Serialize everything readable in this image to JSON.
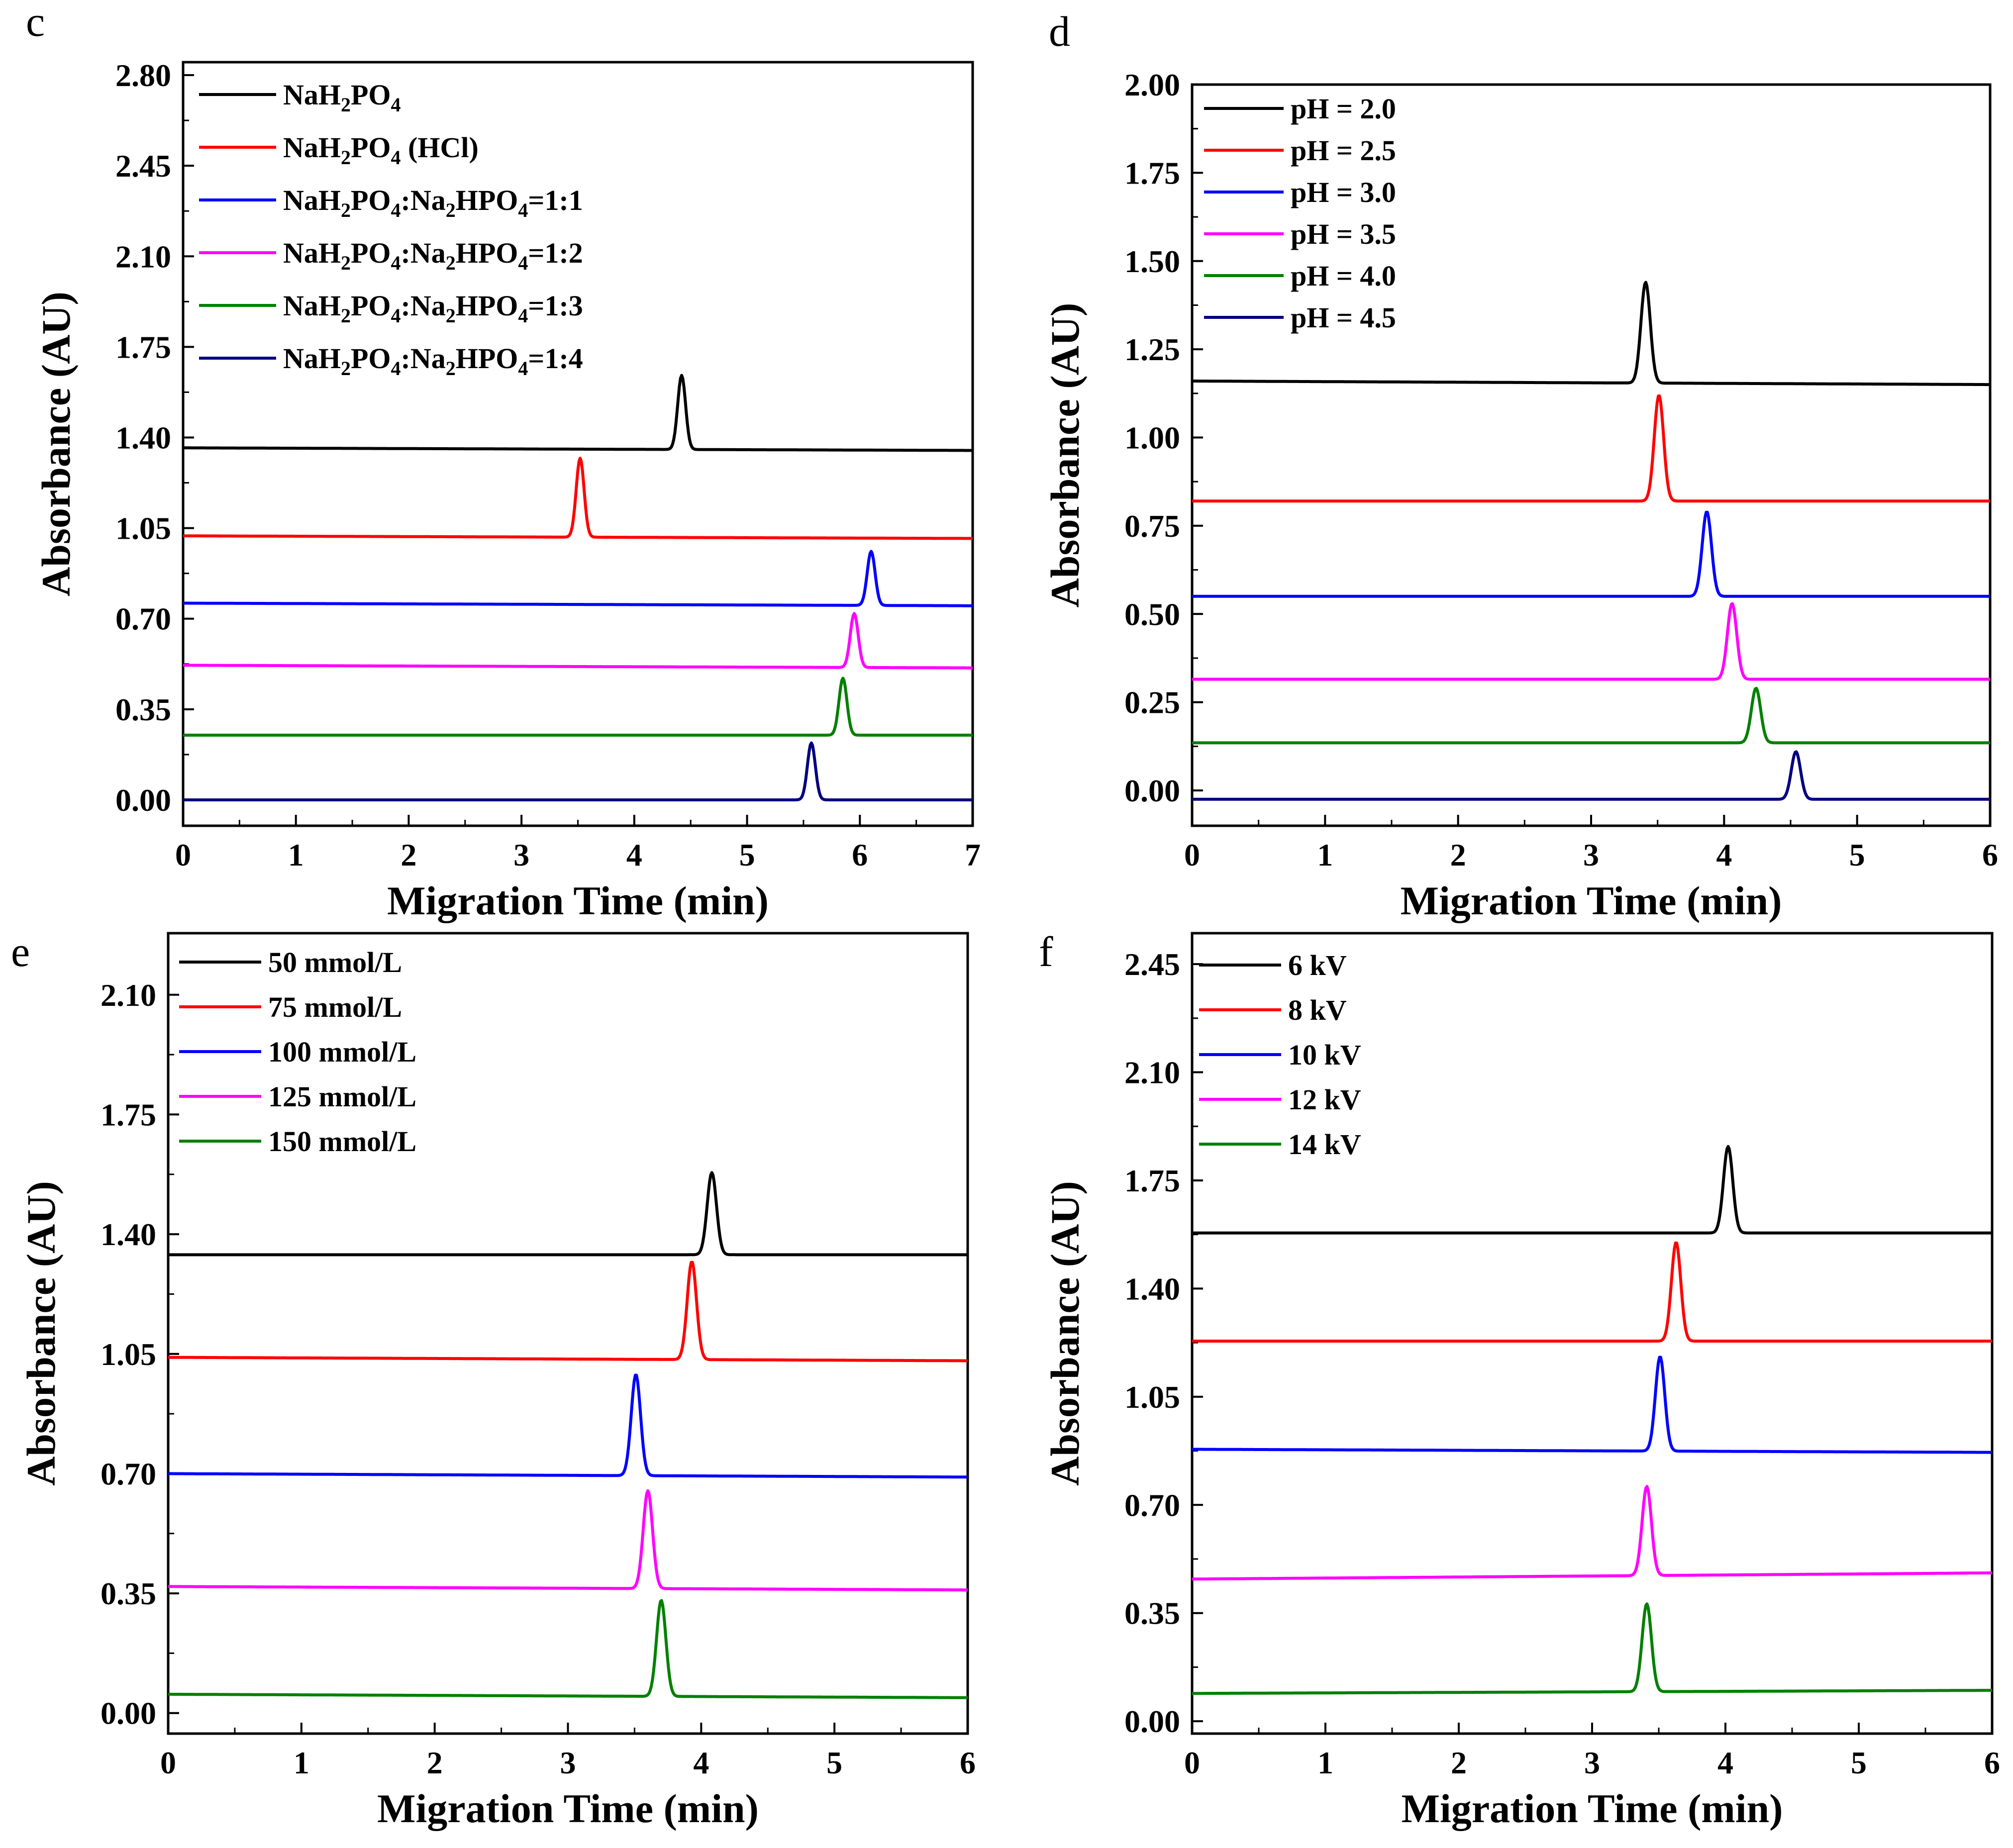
{
  "chart_data": [
    {
      "type": "line",
      "panel": "c",
      "xlabel": "Migration Time (min)",
      "ylabel": "Absorbance (AU)",
      "xlim": [
        0,
        7
      ],
      "ylim": [
        -0.1,
        2.85
      ],
      "xticks": [
        "0",
        "1",
        "2",
        "3",
        "4",
        "5",
        "6",
        "7"
      ],
      "xtick_values": [
        0,
        1,
        2,
        3,
        4,
        5,
        6,
        7
      ],
      "yticks": [
        "0.00",
        "0.35",
        "0.70",
        "1.05",
        "1.40",
        "1.75",
        "2.10",
        "2.45",
        "2.80"
      ],
      "ytick_values": [
        0,
        0.35,
        0.7,
        1.05,
        1.4,
        1.75,
        2.1,
        2.45,
        2.8
      ],
      "legend_position": "top-left",
      "series": [
        {
          "name": "NaH2PO4",
          "parts": [
            [
              "NaH",
              ""
            ],
            [
              "2",
              "sub"
            ],
            [
              "PO",
              ""
            ],
            [
              "4",
              "sub"
            ]
          ],
          "color": "#000000",
          "baseline_start": 1.36,
          "baseline_end": 1.35,
          "peak_time": 4.42,
          "peak_height": 1.64
        },
        {
          "name": "NaH2PO4 (HCl)",
          "parts": [
            [
              "NaH",
              ""
            ],
            [
              "2",
              "sub"
            ],
            [
              "PO",
              ""
            ],
            [
              "4",
              "sub"
            ],
            [
              " (HCl)",
              ""
            ]
          ],
          "color": "#ff0000",
          "baseline_start": 1.02,
          "baseline_end": 1.01,
          "peak_time": 3.52,
          "peak_height": 1.32
        },
        {
          "name": "NaH2PO4:Na2HPO4=1:1",
          "parts": [
            [
              "NaH",
              ""
            ],
            [
              "2",
              "sub"
            ],
            [
              "PO",
              ""
            ],
            [
              "4",
              "sub"
            ],
            [
              ":Na",
              ""
            ],
            [
              "2",
              "sub"
            ],
            [
              "HPO",
              ""
            ],
            [
              "4",
              "sub"
            ],
            [
              "=1:1",
              ""
            ]
          ],
          "color": "#0000ff",
          "baseline_start": 0.76,
          "baseline_end": 0.75,
          "peak_time": 6.1,
          "peak_height": 0.96
        },
        {
          "name": "NaH2PO4:Na2HPO4=1:2",
          "parts": [
            [
              "NaH",
              ""
            ],
            [
              "2",
              "sub"
            ],
            [
              "PO",
              ""
            ],
            [
              "4",
              "sub"
            ],
            [
              ":Na",
              ""
            ],
            [
              "2",
              "sub"
            ],
            [
              "HPO",
              ""
            ],
            [
              "4",
              "sub"
            ],
            [
              "=1:2",
              ""
            ]
          ],
          "color": "#ff00ff",
          "baseline_start": 0.52,
          "baseline_end": 0.51,
          "peak_time": 5.95,
          "peak_height": 0.72
        },
        {
          "name": "NaH2PO4:Na2HPO4=1:3",
          "parts": [
            [
              "NaH",
              ""
            ],
            [
              "2",
              "sub"
            ],
            [
              "PO",
              ""
            ],
            [
              "4",
              "sub"
            ],
            [
              ":Na",
              ""
            ],
            [
              "2",
              "sub"
            ],
            [
              "HPO",
              ""
            ],
            [
              "4",
              "sub"
            ],
            [
              "=1:3",
              ""
            ]
          ],
          "color": "#008000",
          "baseline_start": 0.25,
          "baseline_end": 0.25,
          "peak_time": 5.85,
          "peak_height": 0.47
        },
        {
          "name": "NaH2PO4:Na2HPO4=1:4",
          "parts": [
            [
              "NaH",
              ""
            ],
            [
              "2",
              "sub"
            ],
            [
              "PO",
              ""
            ],
            [
              "4",
              "sub"
            ],
            [
              ":Na",
              ""
            ],
            [
              "2",
              "sub"
            ],
            [
              "HPO",
              ""
            ],
            [
              "4",
              "sub"
            ],
            [
              "=1:4",
              ""
            ]
          ],
          "color": "#000080",
          "baseline_start": 0.0,
          "baseline_end": 0.0,
          "peak_time": 5.57,
          "peak_height": 0.22
        }
      ]
    },
    {
      "type": "line",
      "panel": "d",
      "xlabel": "Migration Time (min)",
      "ylabel": "Absorbance (AU)",
      "xlim": [
        0,
        6
      ],
      "ylim": [
        -0.1,
        2.0
      ],
      "xticks": [
        "0",
        "1",
        "2",
        "3",
        "4",
        "5",
        "6"
      ],
      "xtick_values": [
        0,
        1,
        2,
        3,
        4,
        5,
        6
      ],
      "yticks": [
        "0.00",
        "0.25",
        "0.50",
        "0.75",
        "1.00",
        "1.25",
        "1.50",
        "1.75",
        "2.00"
      ],
      "ytick_values": [
        0,
        0.25,
        0.5,
        0.75,
        1.0,
        1.25,
        1.5,
        1.75,
        2.0
      ],
      "legend_position": "top-left",
      "series": [
        {
          "name": "pH = 2.0",
          "parts": [
            [
              "pH = 2.0",
              ""
            ]
          ],
          "color": "#000000",
          "baseline_start": 1.16,
          "baseline_end": 1.15,
          "peak_time": 3.41,
          "peak_height": 1.44
        },
        {
          "name": "pH = 2.5",
          "parts": [
            [
              "pH = 2.5",
              ""
            ]
          ],
          "color": "#ff0000",
          "baseline_start": 0.82,
          "baseline_end": 0.82,
          "peak_time": 3.51,
          "peak_height": 1.12
        },
        {
          "name": "pH = 3.0",
          "parts": [
            [
              "pH = 3.0",
              ""
            ]
          ],
          "color": "#0000ff",
          "baseline_start": 0.55,
          "baseline_end": 0.55,
          "peak_time": 3.87,
          "peak_height": 0.79
        },
        {
          "name": "pH = 3.5",
          "parts": [
            [
              "pH = 3.5",
              ""
            ]
          ],
          "color": "#ff00ff",
          "baseline_start": 0.315,
          "baseline_end": 0.315,
          "peak_time": 4.06,
          "peak_height": 0.53
        },
        {
          "name": "pH = 4.0",
          "parts": [
            [
              "pH = 4.0",
              ""
            ]
          ],
          "color": "#008000",
          "baseline_start": 0.135,
          "baseline_end": 0.135,
          "peak_time": 4.24,
          "peak_height": 0.29
        },
        {
          "name": "pH = 4.5",
          "parts": [
            [
              "pH = 4.5",
              ""
            ]
          ],
          "color": "#000080",
          "baseline_start": -0.025,
          "baseline_end": -0.025,
          "peak_time": 4.54,
          "peak_height": 0.11
        }
      ]
    },
    {
      "type": "line",
      "panel": "e",
      "xlabel": "Migration Time (min)",
      "ylabel": "Absorbance (AU)",
      "xlim": [
        0,
        6
      ],
      "ylim": [
        -0.06,
        2.28
      ],
      "xticks": [
        "0",
        "1",
        "2",
        "3",
        "4",
        "5",
        "6"
      ],
      "xtick_values": [
        0,
        1,
        2,
        3,
        4,
        5,
        6
      ],
      "yticks": [
        "0.00",
        "0.35",
        "0.70",
        "1.05",
        "1.40",
        "1.75",
        "2.10"
      ],
      "ytick_values": [
        0,
        0.35,
        0.7,
        1.05,
        1.4,
        1.75,
        2.1
      ],
      "legend_position": "top-left",
      "series": [
        {
          "name": "50 mmol/L",
          "parts": [
            [
              "50 mmol/L",
              ""
            ]
          ],
          "color": "#000000",
          "baseline_start": 1.34,
          "baseline_end": 1.34,
          "peak_time": 4.08,
          "peak_height": 1.58
        },
        {
          "name": "75 mmol/L",
          "parts": [
            [
              "75 mmol/L",
              ""
            ]
          ],
          "color": "#ff0000",
          "baseline_start": 1.04,
          "baseline_end": 1.03,
          "peak_time": 3.93,
          "peak_height": 1.32
        },
        {
          "name": "100 mmol/L",
          "parts": [
            [
              "100 mmol/L",
              ""
            ]
          ],
          "color": "#0000ff",
          "baseline_start": 0.7,
          "baseline_end": 0.69,
          "peak_time": 3.51,
          "peak_height": 0.99
        },
        {
          "name": "125 mmol/L",
          "parts": [
            [
              "125 mmol/L",
              ""
            ]
          ],
          "color": "#ff00ff",
          "baseline_start": 0.37,
          "baseline_end": 0.36,
          "peak_time": 3.6,
          "peak_height": 0.65
        },
        {
          "name": "150 mmol/L",
          "parts": [
            [
              "150 mmol/L",
              ""
            ]
          ],
          "color": "#008000",
          "baseline_start": 0.055,
          "baseline_end": 0.045,
          "peak_time": 3.7,
          "peak_height": 0.33
        }
      ]
    },
    {
      "type": "line",
      "panel": "f",
      "xlabel": "Migration Time (min)",
      "ylabel": "Absorbance (AU)",
      "xlim": [
        0,
        6
      ],
      "ylim": [
        -0.04,
        2.55
      ],
      "xticks": [
        "0",
        "1",
        "2",
        "3",
        "4",
        "5",
        "6"
      ],
      "xtick_values": [
        0,
        1,
        2,
        3,
        4,
        5,
        6
      ],
      "yticks": [
        "0.00",
        "0.35",
        "0.70",
        "1.05",
        "1.40",
        "1.75",
        "2.10",
        "2.45"
      ],
      "ytick_values": [
        0,
        0.35,
        0.7,
        1.05,
        1.4,
        1.75,
        2.1,
        2.45
      ],
      "legend_position": "top-left",
      "series": [
        {
          "name": "6 kV",
          "parts": [
            [
              "6 kV",
              ""
            ]
          ],
          "color": "#000000",
          "baseline_start": 1.58,
          "baseline_end": 1.58,
          "peak_time": 4.02,
          "peak_height": 1.86
        },
        {
          "name": "8 kV",
          "parts": [
            [
              "8 kV",
              ""
            ]
          ],
          "color": "#ff0000",
          "baseline_start": 1.23,
          "baseline_end": 1.23,
          "peak_time": 3.63,
          "peak_height": 1.55
        },
        {
          "name": "10 kV",
          "parts": [
            [
              "10 kV",
              ""
            ]
          ],
          "color": "#0000ff",
          "baseline_start": 0.88,
          "baseline_end": 0.87,
          "peak_time": 3.51,
          "peak_height": 1.18
        },
        {
          "name": "12 kV",
          "parts": [
            [
              "12 kV",
              ""
            ]
          ],
          "color": "#ff00ff",
          "baseline_start": 0.46,
          "baseline_end": 0.48,
          "peak_time": 3.41,
          "peak_height": 0.76
        },
        {
          "name": "14 kV",
          "parts": [
            [
              "14 kV",
              ""
            ]
          ],
          "color": "#008000",
          "baseline_start": 0.09,
          "baseline_end": 0.1,
          "peak_time": 3.41,
          "peak_height": 0.38
        }
      ]
    }
  ]
}
